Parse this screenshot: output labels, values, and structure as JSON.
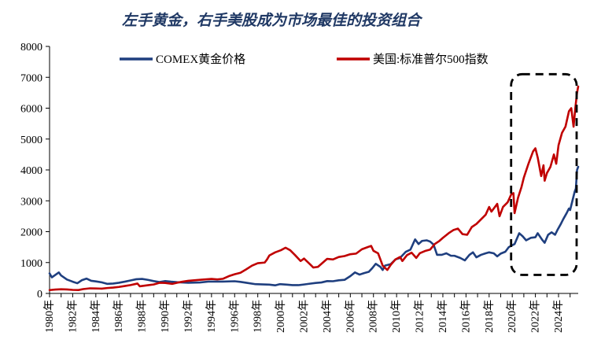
{
  "colors": {
    "gold": "#1F3F7F",
    "sp500": "#C00000",
    "title": "#1F3864",
    "axis": "#000000",
    "highlight": "#000000"
  },
  "chart_data": {
    "type": "line",
    "title": "左手黄金，右手美股成为市场最佳的投资组合",
    "xlabel": "",
    "ylabel": "",
    "xlim": [
      1980.0,
      2025.7
    ],
    "ylim": [
      0,
      8000
    ],
    "yticks": [
      0,
      1000,
      2000,
      3000,
      4000,
      5000,
      6000,
      7000,
      8000
    ],
    "ytick_labels": [
      "0",
      "1000",
      "2000",
      "3000",
      "4000",
      "5000",
      "6000",
      "7000",
      "8000"
    ],
    "xticks": [
      1980,
      1982,
      1984,
      1986,
      1988,
      1990,
      1992,
      1994,
      1996,
      1998,
      2000,
      2002,
      2004,
      2006,
      2008,
      2010,
      2012,
      2014,
      2016,
      2018,
      2020,
      2022,
      2024
    ],
    "xtick_labels": [
      "1980年",
      "1982年",
      "1984年",
      "1986年",
      "1988年",
      "1990年",
      "1992年",
      "1994年",
      "1996年",
      "1998年",
      "2000年",
      "2002年",
      "2004年",
      "2006年",
      "2008年",
      "2010年",
      "2012年",
      "2014年",
      "2016年",
      "2018年",
      "2020年",
      "2022年",
      "2024年"
    ],
    "legend_position": "top",
    "highlight_box": {
      "style": "dashed",
      "x_range": [
        2019.9,
        2025.7
      ],
      "y_range": [
        600,
        7100
      ]
    },
    "series": [
      {
        "name": "COMEX黄金价格",
        "color_key": "gold",
        "points": [
          [
            1980.0,
            650
          ],
          [
            1980.2,
            520
          ],
          [
            1980.5,
            600
          ],
          [
            1980.8,
            680
          ],
          [
            1981.0,
            580
          ],
          [
            1981.5,
            450
          ],
          [
            1982.0,
            380
          ],
          [
            1982.4,
            330
          ],
          [
            1982.8,
            430
          ],
          [
            1983.2,
            480
          ],
          [
            1983.6,
            410
          ],
          [
            1984.0,
            390
          ],
          [
            1984.5,
            360
          ],
          [
            1985.0,
            310
          ],
          [
            1985.5,
            320
          ],
          [
            1986.0,
            345
          ],
          [
            1986.5,
            380
          ],
          [
            1987.0,
            420
          ],
          [
            1987.5,
            460
          ],
          [
            1988.0,
            470
          ],
          [
            1988.5,
            440
          ],
          [
            1989.0,
            400
          ],
          [
            1989.5,
            370
          ],
          [
            1990.0,
            400
          ],
          [
            1990.5,
            380
          ],
          [
            1991.0,
            365
          ],
          [
            1992.0,
            345
          ],
          [
            1993.0,
            355
          ],
          [
            1993.8,
            385
          ],
          [
            1994.5,
            385
          ],
          [
            1995.0,
            385
          ],
          [
            1996.0,
            395
          ],
          [
            1996.5,
            375
          ],
          [
            1997.0,
            345
          ],
          [
            1997.8,
            300
          ],
          [
            1998.5,
            292
          ],
          [
            1999.0,
            285
          ],
          [
            1999.5,
            262
          ],
          [
            1999.9,
            300
          ],
          [
            2000.5,
            285
          ],
          [
            2001.0,
            270
          ],
          [
            2001.5,
            268
          ],
          [
            2002.0,
            290
          ],
          [
            2002.5,
            315
          ],
          [
            2003.0,
            340
          ],
          [
            2003.5,
            355
          ],
          [
            2004.0,
            400
          ],
          [
            2004.5,
            395
          ],
          [
            2005.0,
            425
          ],
          [
            2005.5,
            440
          ],
          [
            2006.0,
            560
          ],
          [
            2006.4,
            680
          ],
          [
            2006.8,
            610
          ],
          [
            2007.2,
            660
          ],
          [
            2007.6,
            700
          ],
          [
            2007.9,
            820
          ],
          [
            2008.2,
            960
          ],
          [
            2008.6,
            860
          ],
          [
            2008.8,
            760
          ],
          [
            2009.0,
            900
          ],
          [
            2009.5,
            950
          ],
          [
            2009.9,
            1100
          ],
          [
            2010.3,
            1150
          ],
          [
            2010.8,
            1350
          ],
          [
            2011.2,
            1420
          ],
          [
            2011.6,
            1750
          ],
          [
            2011.9,
            1600
          ],
          [
            2012.2,
            1700
          ],
          [
            2012.6,
            1720
          ],
          [
            2012.9,
            1680
          ],
          [
            2013.2,
            1580
          ],
          [
            2013.5,
            1250
          ],
          [
            2013.9,
            1250
          ],
          [
            2014.3,
            1300
          ],
          [
            2014.7,
            1220
          ],
          [
            2015.0,
            1220
          ],
          [
            2015.5,
            1150
          ],
          [
            2015.9,
            1070
          ],
          [
            2016.3,
            1250
          ],
          [
            2016.6,
            1330
          ],
          [
            2016.9,
            1170
          ],
          [
            2017.3,
            1250
          ],
          [
            2017.7,
            1300
          ],
          [
            2018.0,
            1330
          ],
          [
            2018.4,
            1300
          ],
          [
            2018.7,
            1200
          ],
          [
            2019.0,
            1290
          ],
          [
            2019.4,
            1350
          ],
          [
            2019.7,
            1500
          ],
          [
            2020.0,
            1560
          ],
          [
            2020.2,
            1600
          ],
          [
            2020.6,
            1950
          ],
          [
            2020.9,
            1850
          ],
          [
            2021.2,
            1720
          ],
          [
            2021.6,
            1800
          ],
          [
            2022.0,
            1820
          ],
          [
            2022.2,
            1950
          ],
          [
            2022.6,
            1730
          ],
          [
            2022.8,
            1640
          ],
          [
            2023.1,
            1900
          ],
          [
            2023.4,
            1980
          ],
          [
            2023.7,
            1900
          ],
          [
            2023.9,
            2050
          ],
          [
            2024.2,
            2250
          ],
          [
            2024.4,
            2400
          ],
          [
            2024.7,
            2600
          ],
          [
            2024.9,
            2750
          ],
          [
            2025.0,
            2700
          ],
          [
            2025.2,
            3000
          ],
          [
            2025.4,
            3300
          ],
          [
            2025.5,
            3400
          ],
          [
            2025.6,
            4000
          ],
          [
            2025.7,
            4100
          ]
        ]
      },
      {
        "name": "美国:标准普尔500指数",
        "color_key": "sp500",
        "points": [
          [
            1980.0,
            108
          ],
          [
            1980.5,
            125
          ],
          [
            1981.0,
            135
          ],
          [
            1981.5,
            130
          ],
          [
            1982.0,
            115
          ],
          [
            1982.5,
            110
          ],
          [
            1982.9,
            140
          ],
          [
            1983.5,
            165
          ],
          [
            1984.0,
            162
          ],
          [
            1984.5,
            155
          ],
          [
            1985.0,
            175
          ],
          [
            1985.5,
            190
          ],
          [
            1986.0,
            210
          ],
          [
            1986.5,
            240
          ],
          [
            1987.0,
            270
          ],
          [
            1987.6,
            320
          ],
          [
            1987.8,
            230
          ],
          [
            1988.5,
            265
          ],
          [
            1989.0,
            290
          ],
          [
            1989.5,
            345
          ],
          [
            1990.0,
            340
          ],
          [
            1990.6,
            310
          ],
          [
            1991.0,
            345
          ],
          [
            1991.5,
            380
          ],
          [
            1992.0,
            410
          ],
          [
            1993.0,
            440
          ],
          [
            1994.0,
            470
          ],
          [
            1994.5,
            455
          ],
          [
            1995.0,
            475
          ],
          [
            1995.5,
            560
          ],
          [
            1996.0,
            620
          ],
          [
            1996.5,
            670
          ],
          [
            1997.0,
            780
          ],
          [
            1997.5,
            900
          ],
          [
            1998.0,
            980
          ],
          [
            1998.6,
            1000
          ],
          [
            1998.8,
            1100
          ],
          [
            1999.0,
            1230
          ],
          [
            1999.5,
            1330
          ],
          [
            2000.0,
            1400
          ],
          [
            2000.4,
            1480
          ],
          [
            2000.8,
            1400
          ],
          [
            2001.2,
            1250
          ],
          [
            2001.7,
            1050
          ],
          [
            2002.0,
            1130
          ],
          [
            2002.5,
            950
          ],
          [
            2002.8,
            840
          ],
          [
            2003.2,
            860
          ],
          [
            2003.6,
            990
          ],
          [
            2004.0,
            1120
          ],
          [
            2004.5,
            1100
          ],
          [
            2005.0,
            1180
          ],
          [
            2005.5,
            1210
          ],
          [
            2006.0,
            1270
          ],
          [
            2006.5,
            1290
          ],
          [
            2007.0,
            1430
          ],
          [
            2007.5,
            1500
          ],
          [
            2007.8,
            1540
          ],
          [
            2008.0,
            1380
          ],
          [
            2008.4,
            1300
          ],
          [
            2008.8,
            900
          ],
          [
            2009.2,
            760
          ],
          [
            2009.5,
            930
          ],
          [
            2009.9,
            1100
          ],
          [
            2010.3,
            1180
          ],
          [
            2010.5,
            1050
          ],
          [
            2010.9,
            1240
          ],
          [
            2011.3,
            1320
          ],
          [
            2011.7,
            1150
          ],
          [
            2012.0,
            1300
          ],
          [
            2012.5,
            1380
          ],
          [
            2012.9,
            1420
          ],
          [
            2013.3,
            1600
          ],
          [
            2013.7,
            1700
          ],
          [
            2014.0,
            1800
          ],
          [
            2014.5,
            1950
          ],
          [
            2014.9,
            2050
          ],
          [
            2015.3,
            2100
          ],
          [
            2015.7,
            1920
          ],
          [
            2016.1,
            1900
          ],
          [
            2016.5,
            2150
          ],
          [
            2016.9,
            2250
          ],
          [
            2017.3,
            2400
          ],
          [
            2017.7,
            2550
          ],
          [
            2018.0,
            2800
          ],
          [
            2018.2,
            2650
          ],
          [
            2018.7,
            2900
          ],
          [
            2018.9,
            2500
          ],
          [
            2019.2,
            2800
          ],
          [
            2019.6,
            2950
          ],
          [
            2019.9,
            3200
          ],
          [
            2020.1,
            3250
          ],
          [
            2020.2,
            2600
          ],
          [
            2020.5,
            3100
          ],
          [
            2020.8,
            3450
          ],
          [
            2021.0,
            3750
          ],
          [
            2021.4,
            4200
          ],
          [
            2021.8,
            4600
          ],
          [
            2022.0,
            4700
          ],
          [
            2022.2,
            4400
          ],
          [
            2022.5,
            3800
          ],
          [
            2022.7,
            4150
          ],
          [
            2022.8,
            3650
          ],
          [
            2023.0,
            3900
          ],
          [
            2023.3,
            4100
          ],
          [
            2023.6,
            4500
          ],
          [
            2023.8,
            4200
          ],
          [
            2024.0,
            4800
          ],
          [
            2024.3,
            5200
          ],
          [
            2024.6,
            5400
          ],
          [
            2024.9,
            5900
          ],
          [
            2025.1,
            6000
          ],
          [
            2025.3,
            5400
          ],
          [
            2025.45,
            6000
          ],
          [
            2025.6,
            6500
          ],
          [
            2025.7,
            6700
          ]
        ]
      }
    ]
  }
}
